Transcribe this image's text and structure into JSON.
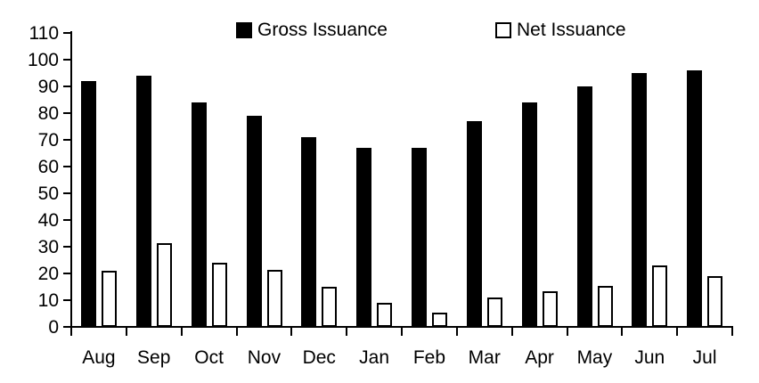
{
  "chart_data": {
    "type": "bar",
    "title": "",
    "xlabel": "",
    "ylabel": "",
    "categories": [
      "Aug",
      "Sep",
      "Oct",
      "Nov",
      "Dec",
      "Jan",
      "Feb",
      "Mar",
      "Apr",
      "May",
      "Jun",
      "Jul"
    ],
    "series": [
      {
        "name": "Gross Issuance",
        "values": [
          92,
          94,
          84,
          79,
          71,
          67,
          67,
          77,
          84,
          90,
          95,
          96
        ],
        "fill": "#000000"
      },
      {
        "name": "Net Issuance",
        "values": [
          21,
          31.5,
          24,
          21.5,
          15,
          9,
          5.5,
          11,
          13.5,
          15.5,
          23,
          19
        ],
        "fill": "#ffffff",
        "border": "#000000"
      }
    ],
    "ylim": [
      0,
      110
    ],
    "ytick_step": 10,
    "ytick_labels": [
      "0",
      "10",
      "20",
      "30",
      "40",
      "50",
      "60",
      "70",
      "80",
      "90",
      "100",
      "110"
    ],
    "grid": false,
    "legend_position": "top",
    "colors": {
      "axis": "#000000",
      "text": "#000000",
      "background": "#ffffff"
    }
  }
}
